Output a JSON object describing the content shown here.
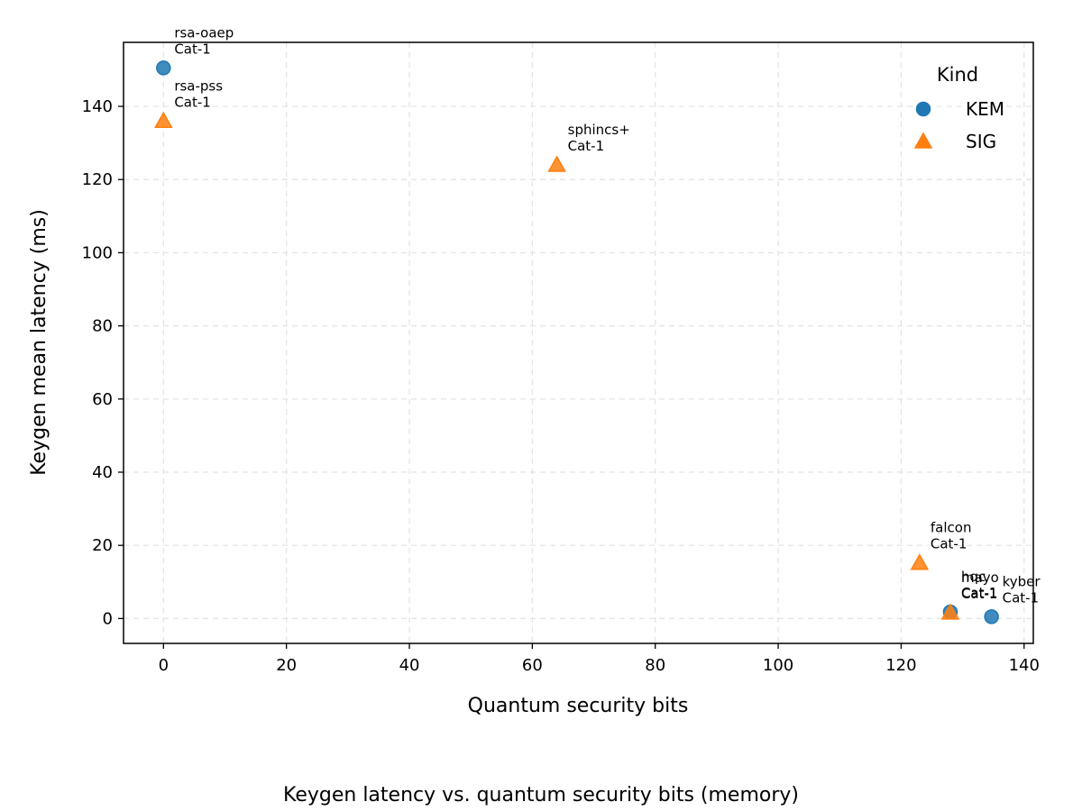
{
  "chart_data": {
    "type": "scatter",
    "caption": "Keygen latency vs. quantum security bits (memory)",
    "xlabel": "Quantum security bits",
    "ylabel": "Keygen mean latency (ms)",
    "xlim": [
      -6.5,
      141.5
    ],
    "ylim": [
      -6.8,
      157.5
    ],
    "xticks": [
      0,
      20,
      40,
      60,
      80,
      100,
      120,
      140
    ],
    "yticks": [
      0,
      20,
      40,
      60,
      80,
      100,
      120,
      140
    ],
    "grid": true,
    "legend": {
      "title": "Kind",
      "placement": "top-right"
    },
    "colors": {
      "KEM": "#1f77b4",
      "SIG": "#ff7f0e"
    },
    "series": [
      {
        "name": "KEM",
        "marker": "circle",
        "points": [
          {
            "x": 0,
            "y": 150.5,
            "label": [
              "rsa-oaep",
              "Cat-1"
            ]
          },
          {
            "x": 128,
            "y": 1.8,
            "label": [
              "hqc",
              "Cat-1"
            ]
          },
          {
            "x": 134.7,
            "y": 0.5,
            "label": [
              "kyber",
              "Cat-1"
            ]
          }
        ]
      },
      {
        "name": "SIG",
        "marker": "triangle",
        "points": [
          {
            "x": 0,
            "y": 136.0,
            "label": [
              "rsa-pss",
              "Cat-1"
            ]
          },
          {
            "x": 64,
            "y": 124.0,
            "label": [
              "sphincs+",
              "Cat-1"
            ]
          },
          {
            "x": 123,
            "y": 15.2,
            "label": [
              "falcon",
              "Cat-1"
            ]
          },
          {
            "x": 128,
            "y": 1.6,
            "label": [
              "mayo",
              "Cat-1"
            ]
          }
        ]
      }
    ]
  }
}
